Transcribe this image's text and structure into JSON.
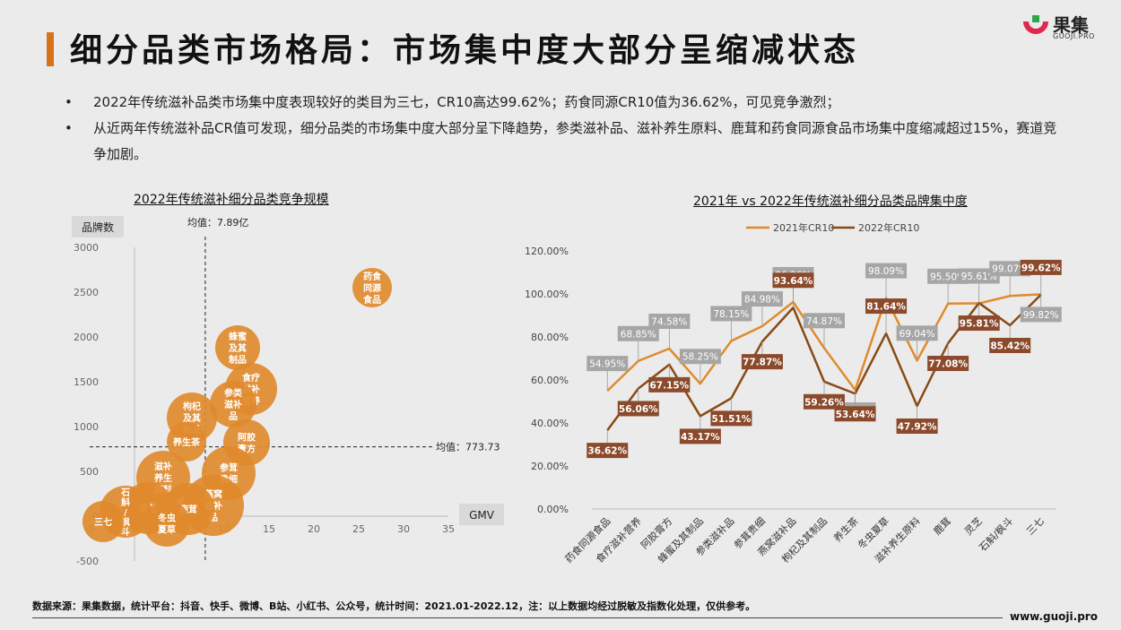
{
  "page": {
    "title": "细分品类市场格局：市场集中度大部分呈缩减状态",
    "logo_name": "果集",
    "logo_sub": "GUOJI.PRO",
    "bullets": [
      "2022年传统滋补品类市场集中度表现较好的类目为三七，CR10高达99.62%；药食同源CR10值为36.62%，可见竞争激烈；",
      "从近两年传统滋补品CR值可发现，细分品类的市场集中度大部分呈下降趋势，参类滋补品、滋补养生原料、鹿茸和药食同源食品市场集中度缩减超过15%，赛道竞争加剧。"
    ],
    "footer": "数据来源：果集数据，统计平台：抖音、快手、微博、B站、小红书、公众号，统计时间：2021.01-2022.12，注：以上数据均经过脱敏及指数化处理，仅供参考。",
    "url": "www.guoji.pro"
  },
  "colors": {
    "accent": "#d6731a",
    "bubble": "#e08a2c",
    "line_2021": "#e08a2c",
    "line_2022": "#8a4a14",
    "label_2021_bg": "#a6a6a6",
    "label_2022_bg": "#8b4a2b"
  },
  "chart_data": [
    {
      "type": "scatter",
      "title": "2022年传统滋补细分品类竞争规模",
      "ylabel": "品牌数",
      "xlabel": "GMV",
      "xlim": [
        -5,
        35
      ],
      "ylim": [
        -500,
        3000
      ],
      "xticks": [
        -5,
        0,
        5,
        10,
        15,
        20,
        25,
        30,
        35
      ],
      "yticks": [
        -500,
        0,
        500,
        1000,
        1500,
        2000,
        2500,
        3000
      ],
      "mean_x": 7.89,
      "mean_y": 773.73,
      "mean_x_label": "均值：7.89亿",
      "mean_y_label": "均值：773.73",
      "points": [
        {
          "label": "药食同源食品",
          "text_lines": [
            "药食",
            "同源",
            "食品"
          ],
          "x": 26.5,
          "y": 2550,
          "r": 2.2
        },
        {
          "label": "蜂蜜及其制品",
          "text_lines": [
            "蜂蜜",
            "及其",
            "制品"
          ],
          "x": 11.5,
          "y": 1880,
          "r": 2.5
        },
        {
          "label": "食疗滋补营养",
          "text_lines": [
            "食疗",
            "滋补",
            "营养"
          ],
          "x": 13.0,
          "y": 1420,
          "r": 2.9
        },
        {
          "label": "参类滋补品",
          "text_lines": [
            "参类",
            "滋补",
            "品"
          ],
          "x": 11.0,
          "y": 1250,
          "r": 2.6
        },
        {
          "label": "枸杞及其制品",
          "text_lines": [
            "枸杞",
            "及其",
            "制品"
          ],
          "x": 6.4,
          "y": 1100,
          "r": 2.8
        },
        {
          "label": "养生茶",
          "text_lines": [
            "养生茶"
          ],
          "x": 5.8,
          "y": 830,
          "r": 2.2
        },
        {
          "label": "阿胶膏方",
          "text_lines": [
            "阿胶",
            "膏方"
          ],
          "x": 12.5,
          "y": 820,
          "r": 2.6
        },
        {
          "label": "参茸贵细",
          "text_lines": [
            "参茸",
            "贵细"
          ],
          "x": 10.5,
          "y": 480,
          "r": 3.0
        },
        {
          "label": "滋补养生原料",
          "text_lines": [
            "滋补",
            "养生",
            "原料"
          ],
          "x": 3.2,
          "y": 430,
          "r": 3.0
        },
        {
          "label": "燕窝滋补品",
          "text_lines": [
            "燕窝",
            "滋补",
            "品"
          ],
          "x": 8.8,
          "y": 120,
          "r": 3.4
        },
        {
          "label": "鹿茸",
          "text_lines": [
            "鹿茸"
          ],
          "x": 6.0,
          "y": 80,
          "r": 2.9
        },
        {
          "label": "灵芝",
          "text_lines": [
            "灵芝"
          ],
          "x": 1.5,
          "y": 90,
          "r": 2.9
        },
        {
          "label": "冬虫夏草",
          "text_lines": [
            "冬虫",
            "夏草"
          ],
          "x": 3.6,
          "y": -80,
          "r": 2.6
        },
        {
          "label": "石斛/枫斗",
          "text_lines": [
            "石",
            "斛",
            "/",
            "枫",
            "斗"
          ],
          "x": -1.0,
          "y": 50,
          "r": 2.9
        },
        {
          "label": "三七",
          "text_lines": [
            "三七"
          ],
          "x": -3.5,
          "y": -60,
          "r": 2.3
        }
      ]
    },
    {
      "type": "line",
      "title": "2021年 vs 2022年传统滋补细分品类品牌集中度",
      "ylim": [
        0,
        1.2
      ],
      "yticks": [
        "0.00%",
        "20.00%",
        "40.00%",
        "60.00%",
        "80.00%",
        "100.00%",
        "120.00%"
      ],
      "categories": [
        "药食同源食品",
        "食疗滋补营养",
        "阿胶膏方",
        "蜂蜜及其制品",
        "参类滋补品",
        "参茸贵细",
        "燕窝滋补品",
        "枸杞及其制品",
        "养生茶",
        "冬虫夏草",
        "滋补养生原料",
        "鹿茸",
        "灵芝",
        "石斛/枫斗",
        "三七"
      ],
      "series": [
        {
          "name": "2021年CR10",
          "values": [
            54.95,
            68.85,
            74.58,
            58.25,
            78.15,
            84.98,
            96.26,
            74.87,
            55.43,
            98.09,
            69.04,
            95.5,
            95.61,
            99.07,
            99.82
          ],
          "labels": [
            "54.95%",
            "68.85%",
            "74.58%",
            "58.25%",
            "78.15%",
            "84.98%",
            "96.26%",
            "74.87%",
            "55.43%",
            "98.09%",
            "69.04%",
            "95.50%",
            "95.61%",
            "99.07%",
            "99.82%"
          ]
        },
        {
          "name": "2022年CR10",
          "values": [
            36.62,
            56.06,
            67.15,
            43.17,
            51.51,
            77.87,
            93.64,
            59.26,
            53.64,
            81.64,
            47.92,
            77.08,
            95.81,
            85.42,
            99.62
          ],
          "labels": [
            "36.62%",
            "56.06%",
            "67.15%",
            "43.17%",
            "51.51%",
            "77.87%",
            "93.64%",
            "59.26%",
            "53.64%",
            "81.64%",
            "47.92%",
            "77.08%",
            "95.81%",
            "85.42%",
            "99.62%"
          ]
        }
      ]
    }
  ]
}
